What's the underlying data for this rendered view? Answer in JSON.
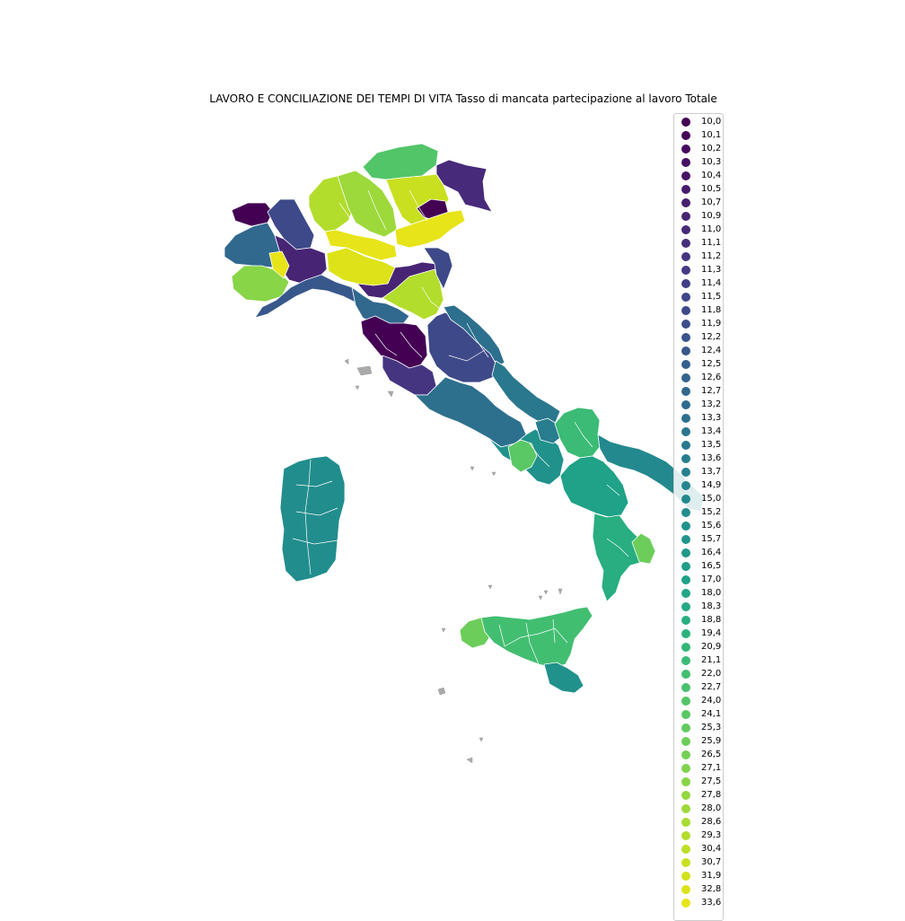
{
  "title": "LAVORO E CONCILIAZIONE DEI TEMPI DI VITA Tasso di mancata partecipazione al lavoro Totale",
  "legend": {
    "entries": [
      {
        "label": "10,0",
        "color": "#440154"
      },
      {
        "label": "10,1",
        "color": "#450559"
      },
      {
        "label": "10,2",
        "color": "#460a5d"
      },
      {
        "label": "10,3",
        "color": "#471063"
      },
      {
        "label": "10,4",
        "color": "#481467"
      },
      {
        "label": "10,5",
        "color": "#481a6c"
      },
      {
        "label": "10,7",
        "color": "#482071"
      },
      {
        "label": "10,9",
        "color": "#482475"
      },
      {
        "label": "11,0",
        "color": "#472a7a"
      },
      {
        "label": "11,1",
        "color": "#472e7c"
      },
      {
        "label": "11,2",
        "color": "#453581"
      },
      {
        "label": "11,3",
        "color": "#443983"
      },
      {
        "label": "11,4",
        "color": "#423f85"
      },
      {
        "label": "11,5",
        "color": "#404588"
      },
      {
        "label": "11,8",
        "color": "#3e4989"
      },
      {
        "label": "11,9",
        "color": "#3c4f8a"
      },
      {
        "label": "12,2",
        "color": "#3a548c"
      },
      {
        "label": "12,4",
        "color": "#38588c"
      },
      {
        "label": "12,5",
        "color": "#355f8d"
      },
      {
        "label": "12,6",
        "color": "#33638d"
      },
      {
        "label": "12,7",
        "color": "#31688e"
      },
      {
        "label": "13,2",
        "color": "#2f6c8e"
      },
      {
        "label": "13,3",
        "color": "#2d708e"
      },
      {
        "label": "13,4",
        "color": "#2b758e"
      },
      {
        "label": "13,5",
        "color": "#2a788e"
      },
      {
        "label": "13,6",
        "color": "#287d8e"
      },
      {
        "label": "13,7",
        "color": "#26818e"
      },
      {
        "label": "14,9",
        "color": "#25858e"
      },
      {
        "label": "15,0",
        "color": "#23898e"
      },
      {
        "label": "15,2",
        "color": "#228d8d"
      },
      {
        "label": "15,6",
        "color": "#21918c"
      },
      {
        "label": "15,7",
        "color": "#1f958b"
      },
      {
        "label": "16,4",
        "color": "#1f998a"
      },
      {
        "label": "16,5",
        "color": "#1f9e89"
      },
      {
        "label": "17,0",
        "color": "#1fa287"
      },
      {
        "label": "18,0",
        "color": "#21a685"
      },
      {
        "label": "18,3",
        "color": "#24aa83"
      },
      {
        "label": "18,8",
        "color": "#28ae80"
      },
      {
        "label": "19,4",
        "color": "#2db27d"
      },
      {
        "label": "20,9",
        "color": "#34b679"
      },
      {
        "label": "21,1",
        "color": "#3bbb75"
      },
      {
        "label": "22,0",
        "color": "#42be71"
      },
      {
        "label": "22,7",
        "color": "#4ac16d"
      },
      {
        "label": "24,0",
        "color": "#52c569"
      },
      {
        "label": "24,1",
        "color": "#5ac864"
      },
      {
        "label": "25,3",
        "color": "#63cb5f"
      },
      {
        "label": "25,9",
        "color": "#6ccd5a"
      },
      {
        "label": "26,5",
        "color": "#75d054"
      },
      {
        "label": "27,1",
        "color": "#7fd34e"
      },
      {
        "label": "27,5",
        "color": "#88d548"
      },
      {
        "label": "27,8",
        "color": "#93d741"
      },
      {
        "label": "28,0",
        "color": "#9dd93b"
      },
      {
        "label": "28,6",
        "color": "#a8db34"
      },
      {
        "label": "29,3",
        "color": "#b2dd2d"
      },
      {
        "label": "30,4",
        "color": "#bddf26"
      },
      {
        "label": "30,7",
        "color": "#c8e020"
      },
      {
        "label": "31,9",
        "color": "#d2e21b"
      },
      {
        "label": "32,8",
        "color": "#dde318"
      },
      {
        "label": "33,6",
        "color": "#e7e419"
      }
    ]
  },
  "regions": [
    {
      "name": "valle-d-aosta",
      "color": "#440154"
    },
    {
      "name": "piemonte-nw",
      "color": "#31688e"
    },
    {
      "name": "piemonte-n",
      "color": "#3e4989"
    },
    {
      "name": "piemonte-c",
      "color": "#482475"
    },
    {
      "name": "piemonte-sw",
      "color": "#88d548"
    },
    {
      "name": "piemonte-s",
      "color": "#e7e419"
    },
    {
      "name": "liguria",
      "color": "#38588c"
    },
    {
      "name": "lombardia-w",
      "color": "#b2dd2d"
    },
    {
      "name": "lombardia-n",
      "color": "#9dd93b"
    },
    {
      "name": "lombardia-c",
      "color": "#e7e419"
    },
    {
      "name": "lombardia-s",
      "color": "#dde318"
    },
    {
      "name": "trentino",
      "color": "#52c569"
    },
    {
      "name": "alto-adige-e",
      "color": "#472a7a"
    },
    {
      "name": "veneto-n",
      "color": "#c8e020"
    },
    {
      "name": "veneto-c",
      "color": "#440154"
    },
    {
      "name": "veneto-e",
      "color": "#e7e419"
    },
    {
      "name": "emilia-w",
      "color": "#482475"
    },
    {
      "name": "emilia-c",
      "color": "#b2dd2d"
    },
    {
      "name": "romagna",
      "color": "#3e4989"
    },
    {
      "name": "toscana-n",
      "color": "#31688e"
    },
    {
      "name": "toscana-c",
      "color": "#440154"
    },
    {
      "name": "toscana-s",
      "color": "#453581"
    },
    {
      "name": "marche-umbria",
      "color": "#3e4989"
    },
    {
      "name": "marche-s",
      "color": "#2d708e"
    },
    {
      "name": "lazio",
      "color": "#2d708e"
    },
    {
      "name": "abruzzo",
      "color": "#2a788e"
    },
    {
      "name": "campania",
      "color": "#21918c"
    },
    {
      "name": "campania-coast",
      "color": "#5ac864"
    },
    {
      "name": "molise",
      "color": "#287d8e"
    },
    {
      "name": "puglia-n",
      "color": "#3bbb75"
    },
    {
      "name": "puglia-c",
      "color": "#23898e"
    },
    {
      "name": "basilicata",
      "color": "#1fa287"
    },
    {
      "name": "calabria",
      "color": "#28ae80"
    },
    {
      "name": "calabria-e",
      "color": "#6ccd5a"
    },
    {
      "name": "sicilia-w",
      "color": "#6ccd5a"
    },
    {
      "name": "sicilia",
      "color": "#42be71"
    },
    {
      "name": "sicilia-se",
      "color": "#21918c"
    },
    {
      "name": "sardegna",
      "color": "#228d8d"
    }
  ]
}
